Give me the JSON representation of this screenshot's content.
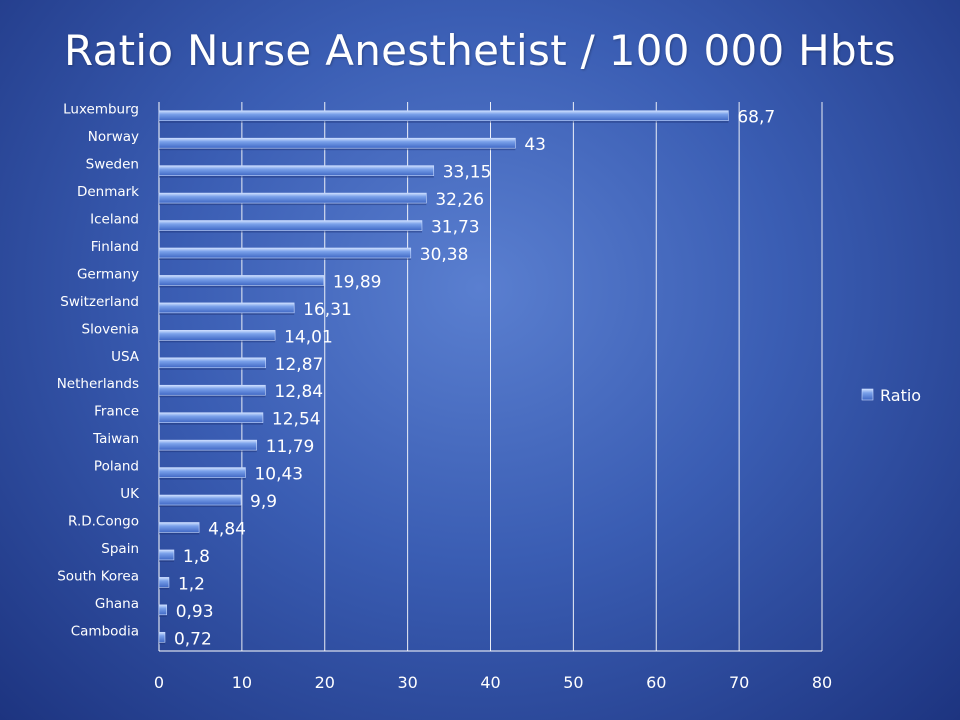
{
  "chart_data": {
    "type": "bar",
    "orientation": "horizontal",
    "title": "Ratio Nurse Anesthetist / 100 000 Hbts",
    "categories": [
      "Luxemburg",
      "Norway",
      "Sweden",
      "Denmark",
      "Iceland",
      "Finland",
      "Germany",
      "Switzerland",
      "Slovenia",
      "USA",
      "Netherlands",
      "France",
      "Taiwan",
      "Poland",
      "UK",
      "R.D.Congo",
      "Spain",
      "South Korea",
      "Ghana",
      "Cambodia"
    ],
    "series": [
      {
        "name": "Ratio",
        "values": [
          68.7,
          43,
          33.15,
          32.26,
          31.73,
          30.38,
          19.89,
          16.31,
          14.01,
          12.87,
          12.84,
          12.54,
          11.79,
          10.43,
          9.9,
          4.84,
          1.8,
          1.2,
          0.93,
          0.72
        ],
        "labels": [
          "68,7",
          "43",
          "33,15",
          "32,26",
          "31,73",
          "30,38",
          "19,89",
          "16,31",
          "14,01",
          "12,87",
          "12,84",
          "12,54",
          "11,79",
          "10,43",
          "9,9",
          "4,84",
          "1,8",
          "1,2",
          "0,93",
          "0,72"
        ],
        "color": "#6d93e0"
      }
    ],
    "xlim": [
      0,
      80
    ],
    "xticks": [
      0,
      10,
      20,
      30,
      40,
      50,
      60,
      70,
      80
    ],
    "grid": true,
    "legend": "right"
  }
}
